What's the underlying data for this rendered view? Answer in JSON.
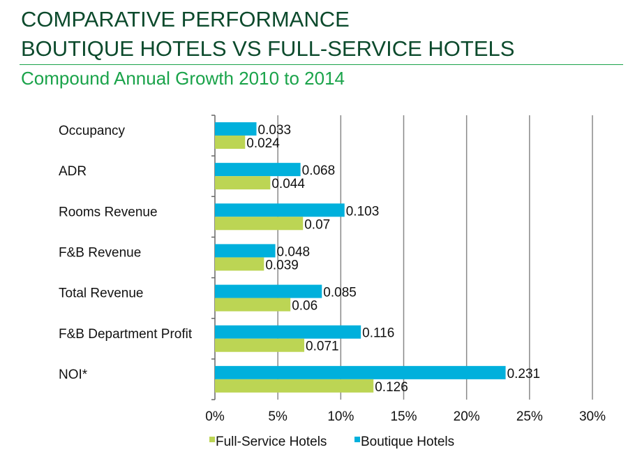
{
  "header": {
    "title_line1": "COMPARATIVE PERFORMANCE",
    "title_line2": "BOUTIQUE HOTELS VS FULL-SERVICE HOTELS",
    "subtitle": "Compound Annual Growth 2010 to 2014"
  },
  "chart_data": {
    "type": "bar",
    "orientation": "horizontal",
    "categories": [
      "Occupancy",
      "ADR",
      "Rooms Revenue",
      "F&B Revenue",
      "Total Revenue",
      "F&B Department Profit",
      "NOI*"
    ],
    "series": [
      {
        "name": "Boutique Hotels",
        "color": "#00b0dc",
        "values": [
          0.033,
          0.068,
          0.103,
          0.048,
          0.085,
          0.116,
          0.231
        ],
        "labels": [
          "0.033",
          "0.068",
          "0.103",
          "0.048",
          "0.085",
          "0.116",
          "0.231"
        ]
      },
      {
        "name": "Full-Service Hotels",
        "color": "#bcd554",
        "values": [
          0.024,
          0.044,
          0.07,
          0.039,
          0.06,
          0.071,
          0.126
        ],
        "labels": [
          "0.024",
          "0.044",
          "0.07",
          "0.039",
          "0.06",
          "0.071",
          "0.126"
        ]
      }
    ],
    "xlim": [
      0,
      0.3
    ],
    "xticks": [
      "0%",
      "5%",
      "10%",
      "15%",
      "20%",
      "25%",
      "30%"
    ],
    "grid": "vertical",
    "legend": {
      "placement": "bottom",
      "entries": [
        "Full-Service Hotels",
        "Boutique Hotels"
      ]
    }
  }
}
